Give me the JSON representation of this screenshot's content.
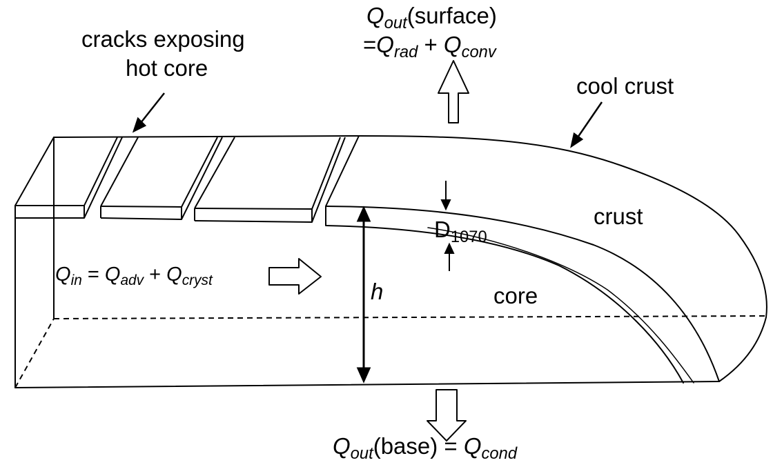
{
  "labels": {
    "cracks_line1": "cracks exposing",
    "cracks_line2": "hot core",
    "qout_surface": {
      "q": "Q",
      "sub": "out",
      "rest": "(surface)"
    },
    "qout_surface_eq": {
      "eq": "=",
      "q1": "Q",
      "sub1": "rad",
      "plus": " + ",
      "q2": "Q",
      "sub2": "conv"
    },
    "cool_crust": "cool crust",
    "crust": "crust",
    "core": "core",
    "d1070": {
      "d": "D",
      "sub": "1070"
    },
    "h": "h",
    "qin": {
      "q": "Q",
      "sub": "in",
      "eq": " = ",
      "q1": "Q",
      "sub1": "adv",
      "plus": " + ",
      "q2": "Q",
      "sub2": "cryst"
    },
    "qout_base": {
      "q": "Q",
      "sub": "out",
      "rest": "(base) = ",
      "q2": "Q",
      "sub2": "cond"
    }
  },
  "colors": {
    "line": "#000000",
    "background": "#ffffff"
  }
}
